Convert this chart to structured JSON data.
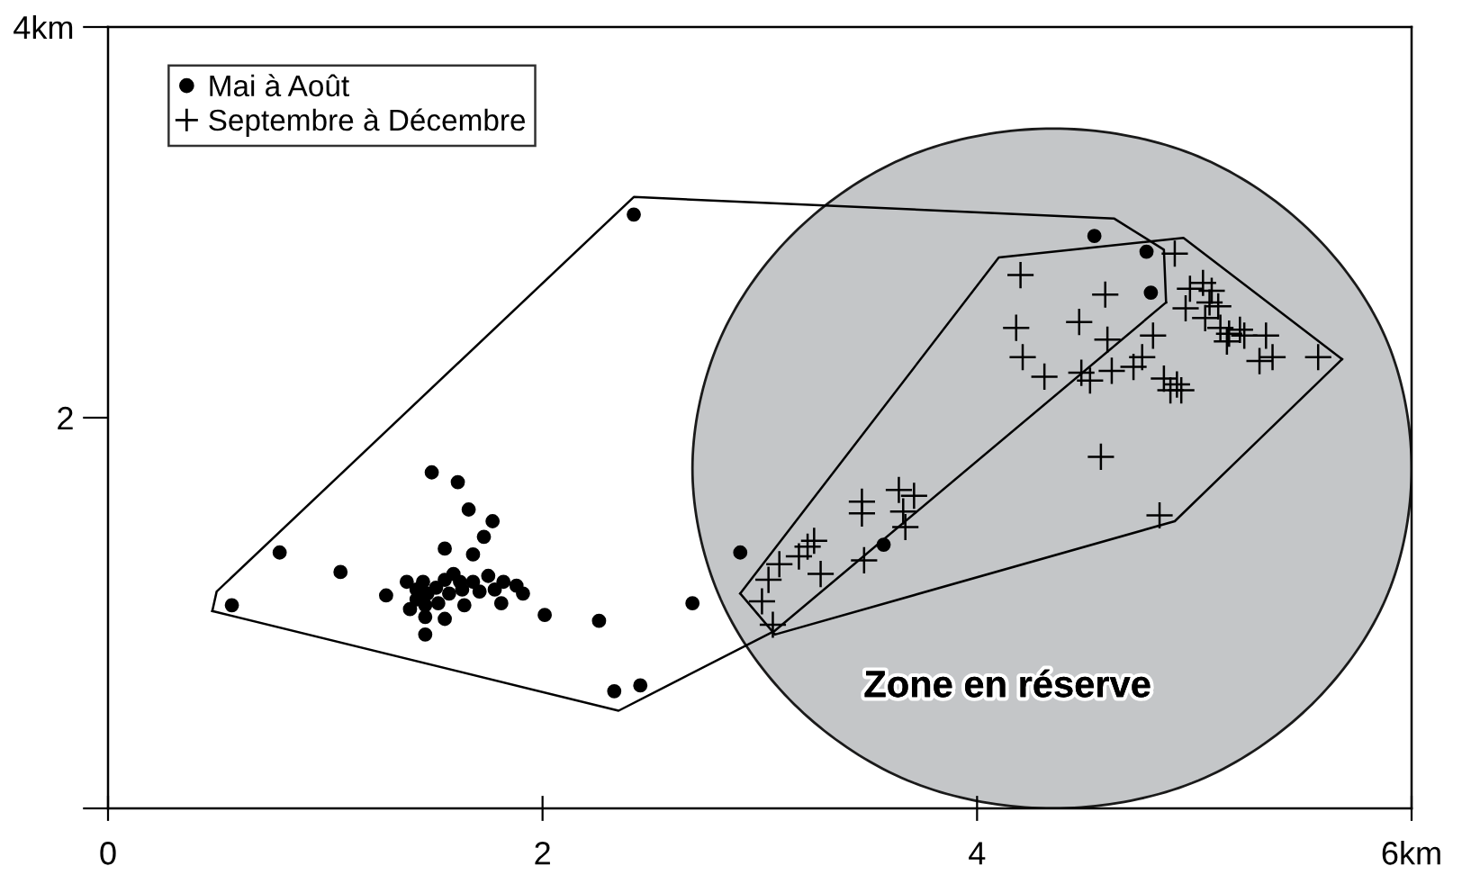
{
  "chart_data": {
    "type": "scatter",
    "xlim": [
      0,
      6
    ],
    "ylim": [
      0,
      4
    ],
    "xticks": [
      0,
      2,
      4,
      {
        "value": 6,
        "label": "6km"
      }
    ],
    "yticks": [
      {
        "value": 0,
        "label": null
      },
      2,
      {
        "value": 4,
        "label": "4km"
      }
    ],
    "grid": false,
    "legend": "top left",
    "annotations": [
      "Zone en réserve"
    ],
    "series": [
      {
        "type": "area",
        "color": "#c4c6c8",
        "x": [
          6.0,
          5.88,
          5.52,
          4.99,
          4.35,
          3.71,
          3.18,
          2.82,
          2.69,
          2.82,
          3.18,
          3.71,
          4.35,
          4.99,
          5.52,
          5.88,
          6.0
        ],
        "values": [
          1.74,
          2.41,
          2.97,
          3.35,
          3.48,
          3.35,
          2.97,
          2.41,
          1.74,
          1.07,
          0.51,
          0.13,
          0.0,
          0.13,
          0.51,
          1.07,
          1.74
        ]
      },
      {
        "type": "line",
        "color": "#000000",
        "marker": "none",
        "x": [
          0.48,
          0.5,
          2.42,
          4.63,
          4.86,
          4.87
        ],
        "values": [
          1.01,
          1.11,
          3.13,
          3.02,
          2.86,
          2.59
        ]
      },
      {
        "type": "line",
        "color": "#000000",
        "marker": "none",
        "x": [
          0.48,
          2.35,
          3.07,
          4.87
        ],
        "values": [
          1.01,
          0.5,
          0.91,
          2.59
        ]
      },
      {
        "type": "line",
        "color": "#000000",
        "marker": "none",
        "x": [
          2.91,
          4.1,
          4.95,
          5.68
        ],
        "values": [
          1.1,
          2.82,
          2.92,
          2.3
        ]
      },
      {
        "type": "line",
        "color": "#000000",
        "marker": "none",
        "x": [
          2.91,
          3.07,
          4.91,
          5.68
        ],
        "values": [
          1.1,
          0.89,
          1.47,
          2.3
        ]
      },
      {
        "name": "Mai à Août",
        "color": "#000000",
        "marker": "circle",
        "x": [
          1.49,
          1.61,
          1.66,
          1.77,
          1.73,
          1.55,
          1.68,
          0.79,
          1.07,
          1.28,
          1.46,
          2.01,
          2.26,
          2.69,
          2.91,
          0.57,
          2.33,
          2.45,
          2.42,
          3.57,
          4.54,
          4.78,
          4.8,
          1.375,
          1.42,
          1.45,
          1.47,
          1.51,
          1.55,
          1.59,
          1.62,
          1.57,
          1.52,
          1.46,
          1.42,
          1.39,
          1.63,
          1.64,
          1.55,
          1.46,
          1.75,
          1.78,
          1.82,
          1.88,
          1.91,
          1.81,
          1.71,
          1.68
        ],
        "values": [
          1.72,
          1.67,
          1.53,
          1.47,
          1.39,
          1.33,
          1.3,
          1.31,
          1.21,
          1.09,
          0.89,
          0.99,
          0.96,
          1.05,
          1.31,
          1.04,
          0.6,
          0.63,
          3.04,
          1.35,
          2.93,
          2.85,
          2.64,
          1.16,
          1.12,
          1.16,
          1.1,
          1.13,
          1.17,
          1.2,
          1.16,
          1.1,
          1.05,
          1.04,
          1.07,
          1.02,
          1.12,
          1.04,
          0.97,
          0.98,
          1.19,
          1.12,
          1.16,
          1.14,
          1.1,
          1.05,
          1.11,
          1.16
        ]
      },
      {
        "name": "Septembre à Décembre",
        "color": "#000000",
        "marker": "cross",
        "x": [
          3.47,
          3.47,
          3.64,
          3.71,
          3.66,
          3.67,
          3.48,
          3.25,
          3.22,
          3.18,
          3.28,
          3.09,
          3.04,
          3.01,
          3.06,
          4.91,
          4.2,
          4.59,
          4.18,
          4.47,
          4.6,
          4.81,
          4.21,
          4.31,
          4.48,
          4.52,
          4.62,
          4.72,
          4.76,
          4.57,
          4.84,
          4.98,
          5.04,
          5.08,
          4.96,
          5.07,
          5.11,
          5.05,
          5.12,
          5.16,
          5.21,
          5.23,
          5.15,
          5.33,
          5.3,
          5.36,
          5.57,
          4.86,
          4.92,
          4.94,
          4.89
        ],
        "values": [
          1.57,
          1.51,
          1.63,
          1.6,
          1.52,
          1.44,
          1.27,
          1.37,
          1.34,
          1.29,
          1.2,
          1.25,
          1.17,
          1.06,
          0.94,
          2.84,
          2.73,
          2.63,
          2.46,
          2.49,
          2.4,
          2.42,
          2.31,
          2.21,
          2.23,
          2.19,
          2.24,
          2.26,
          2.31,
          1.8,
          1.5,
          2.66,
          2.69,
          2.65,
          2.56,
          2.59,
          2.57,
          2.51,
          2.46,
          2.43,
          2.45,
          2.42,
          2.39,
          2.42,
          2.29,
          2.31,
          2.31,
          2.2,
          2.17,
          2.14,
          2.14
        ]
      }
    ]
  }
}
